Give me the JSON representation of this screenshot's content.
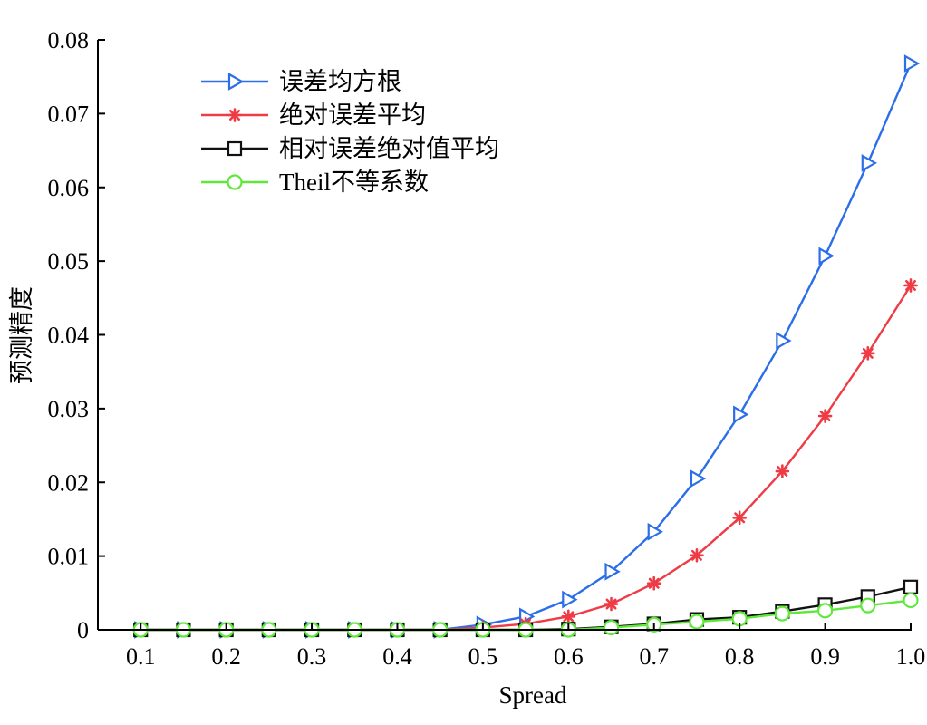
{
  "chart_data": {
    "type": "line",
    "xlabel": "Spread",
    "ylabel": "预测精度",
    "xlim": [
      0.05,
      1.0
    ],
    "ylim": [
      0,
      0.08
    ],
    "xticks": [
      "0.1",
      "0.2",
      "0.3",
      "0.4",
      "0.5",
      "0.6",
      "0.7",
      "0.8",
      "0.9",
      "1.0"
    ],
    "yticks": [
      "0",
      "0.01",
      "0.02",
      "0.03",
      "0.04",
      "0.05",
      "0.06",
      "0.07",
      "0.08"
    ],
    "legend_position": "top-left",
    "grid": false,
    "x": [
      0.1,
      0.15,
      0.2,
      0.25,
      0.3,
      0.35,
      0.4,
      0.45,
      0.5,
      0.55,
      0.6,
      0.65,
      0.7,
      0.75,
      0.8,
      0.85,
      0.9,
      0.95,
      1.0
    ],
    "series": [
      {
        "name": "误差均方根",
        "color": "#2b6ee8",
        "marker": "triangle-right",
        "values": [
          0,
          0,
          0,
          0,
          0,
          0,
          0,
          0,
          0.0007,
          0.0018,
          0.0041,
          0.0079,
          0.0133,
          0.0205,
          0.0292,
          0.0392,
          0.0507,
          0.0633,
          0.0768
        ]
      },
      {
        "name": "绝对误差平均",
        "color": "#ef3b45",
        "marker": "asterisk",
        "values": [
          0,
          0,
          0,
          0,
          0,
          0,
          0,
          0,
          0.0003,
          0.0008,
          0.0018,
          0.0035,
          0.0063,
          0.0101,
          0.0152,
          0.0215,
          0.029,
          0.0375,
          0.0467
        ]
      },
      {
        "name": "相对误差绝对值平均",
        "color": "#111111",
        "marker": "square",
        "values": [
          0,
          0,
          0,
          0,
          0,
          0,
          0,
          0,
          0,
          0,
          0.0001,
          0.0004,
          0.0008,
          0.0014,
          0.0017,
          0.0025,
          0.0034,
          0.0045,
          0.0058
        ]
      },
      {
        "name": "Theil不等系数",
        "color": "#5ee93a",
        "marker": "circle",
        "values": [
          0,
          0,
          0,
          0,
          0,
          0,
          0,
          0,
          0,
          0,
          0,
          0.0003,
          0.0007,
          0.0011,
          0.0015,
          0.0022,
          0.0026,
          0.0033,
          0.004
        ]
      }
    ]
  }
}
